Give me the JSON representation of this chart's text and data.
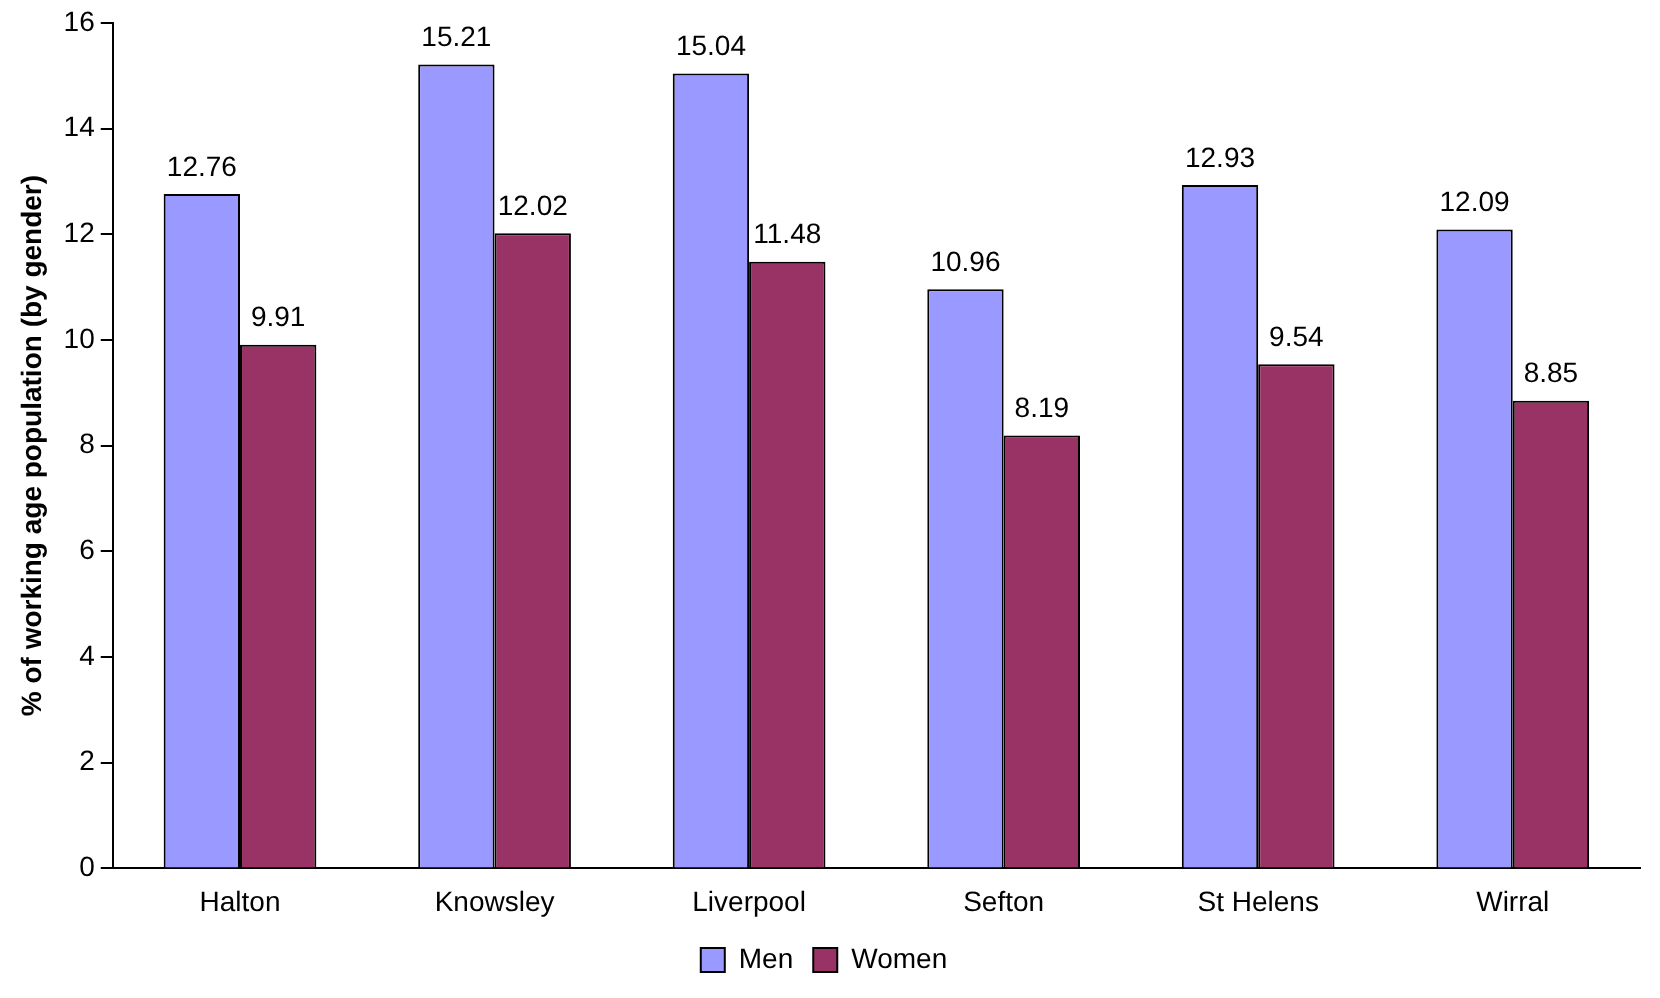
{
  "chart_data": {
    "type": "bar",
    "ylabel": "% of working age population (by gender)",
    "categories": [
      "Halton",
      "Knowsley",
      "Liverpool",
      "Sefton",
      "St Helens",
      "Wirral"
    ],
    "series": [
      {
        "name": "Men",
        "color": "#9999ff",
        "values": [
          12.76,
          15.21,
          15.04,
          10.96,
          12.93,
          12.09
        ]
      },
      {
        "name": "Women",
        "color": "#993366",
        "values": [
          9.91,
          12.02,
          11.48,
          8.19,
          9.54,
          8.85
        ]
      }
    ],
    "ylim": [
      0,
      16
    ],
    "yticks": [
      0,
      2,
      4,
      6,
      8,
      10,
      12,
      14,
      16
    ],
    "grid": false,
    "legend": "bottom",
    "data_labels": true
  }
}
